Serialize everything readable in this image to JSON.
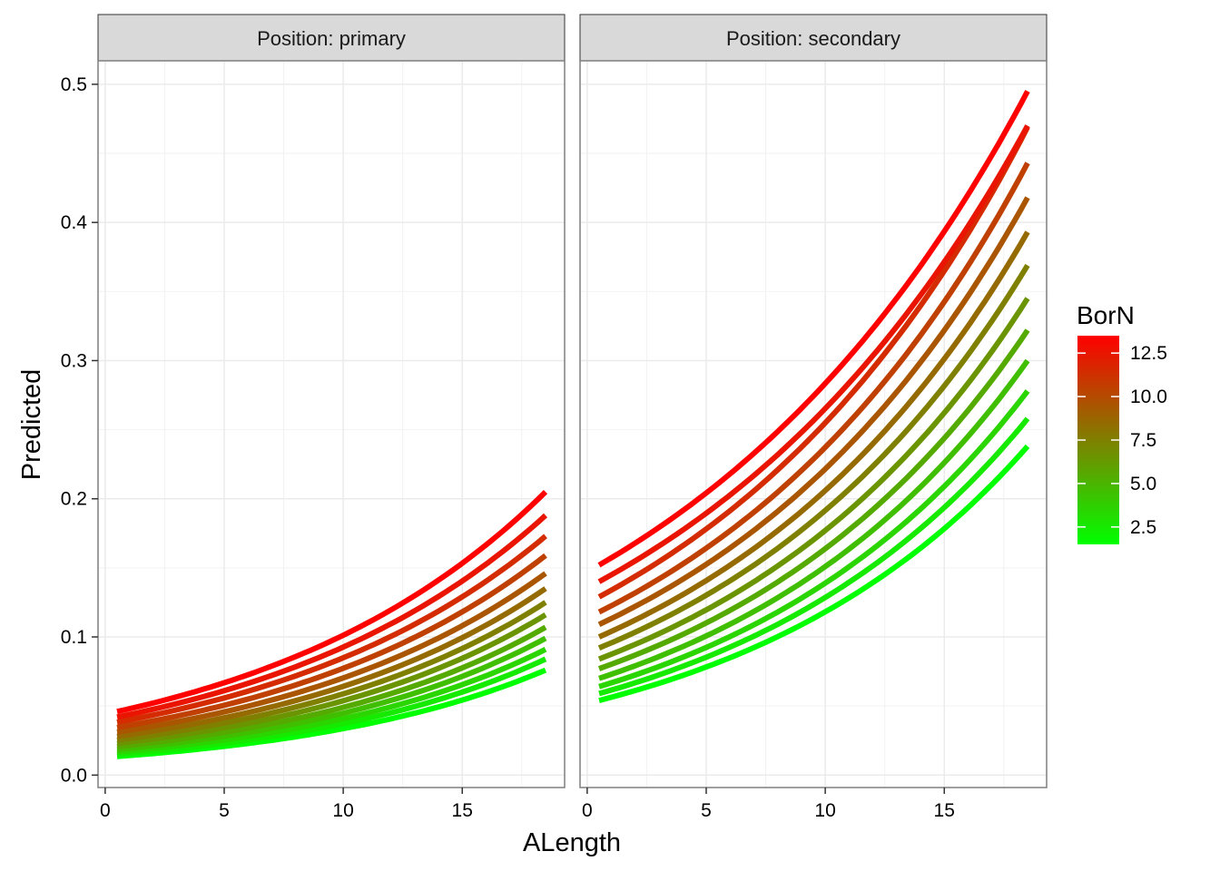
{
  "chart_data": {
    "type": "line",
    "xlabel": "ALength",
    "ylabel": "Predicted",
    "xlim": [
      -0.3,
      19.3
    ],
    "ylim": [
      -0.009,
      0.517
    ],
    "x_ticks": [
      0,
      5,
      10,
      15
    ],
    "y_ticks": [
      0.0,
      0.1,
      0.2,
      0.3,
      0.4,
      0.5
    ],
    "x_tick_labels": [
      "0",
      "5",
      "10",
      "15"
    ],
    "y_tick_labels": [
      "0.0",
      "0.1",
      "0.2",
      "0.3",
      "0.4",
      "0.5"
    ],
    "grid": true,
    "x_range": [
      0.5,
      18.5
    ],
    "color_scale": {
      "title": "BorN",
      "low_color": "#00ff00",
      "high_color": "#ff0000",
      "min": 1.5,
      "max": 13.5,
      "breaks": [
        2.5,
        5.0,
        7.5,
        10.0,
        12.5
      ],
      "break_labels": [
        "2.5",
        "5.0",
        "7.5",
        "10.0",
        "12.5"
      ],
      "legend_position": "right"
    },
    "facets": [
      {
        "strip": "Position: primary",
        "series": [
          {
            "born": 1.5,
            "y_start": 0.0135,
            "y_end": 0.076
          },
          {
            "born": 2.5,
            "y_start": 0.015,
            "y_end": 0.084
          },
          {
            "born": 3.5,
            "y_start": 0.0167,
            "y_end": 0.091
          },
          {
            "born": 4.5,
            "y_start": 0.0185,
            "y_end": 0.099
          },
          {
            "born": 5.5,
            "y_start": 0.0205,
            "y_end": 0.107
          },
          {
            "born": 6.5,
            "y_start": 0.0228,
            "y_end": 0.116
          },
          {
            "born": 7.5,
            "y_start": 0.0253,
            "y_end": 0.125
          },
          {
            "born": 8.5,
            "y_start": 0.028,
            "y_end": 0.135
          },
          {
            "born": 9.5,
            "y_start": 0.0311,
            "y_end": 0.146
          },
          {
            "born": 10.5,
            "y_start": 0.0345,
            "y_end": 0.159
          },
          {
            "born": 11.5,
            "y_start": 0.0383,
            "y_end": 0.173
          },
          {
            "born": 12.5,
            "y_start": 0.042,
            "y_end": 0.188
          },
          {
            "born": 13.5,
            "y_start": 0.046,
            "y_end": 0.205
          }
        ]
      },
      {
        "strip": "Position: secondary",
        "series": [
          {
            "born": 1.5,
            "y_start": 0.054,
            "y_end": 0.238
          },
          {
            "born": 2.5,
            "y_start": 0.059,
            "y_end": 0.258
          },
          {
            "born": 3.5,
            "y_start": 0.064,
            "y_end": 0.278
          },
          {
            "born": 4.5,
            "y_start": 0.07,
            "y_end": 0.3
          },
          {
            "born": 5.5,
            "y_start": 0.077,
            "y_end": 0.322
          },
          {
            "born": 6.5,
            "y_start": 0.084,
            "y_end": 0.345
          },
          {
            "born": 7.5,
            "y_start": 0.092,
            "y_end": 0.369
          },
          {
            "born": 8.5,
            "y_start": 0.1,
            "y_end": 0.393
          },
          {
            "born": 9.5,
            "y_start": 0.109,
            "y_end": 0.418
          },
          {
            "born": 10.5,
            "y_start": 0.118,
            "y_end": 0.443
          },
          {
            "born": 11.5,
            "y_start": 0.129,
            "y_end": 0.469
          },
          {
            "born": 12.5,
            "y_start": 0.14,
            "y_end": 0.47
          },
          {
            "born": 13.5,
            "y_start": 0.152,
            "y_end": 0.495
          }
        ]
      }
    ]
  }
}
